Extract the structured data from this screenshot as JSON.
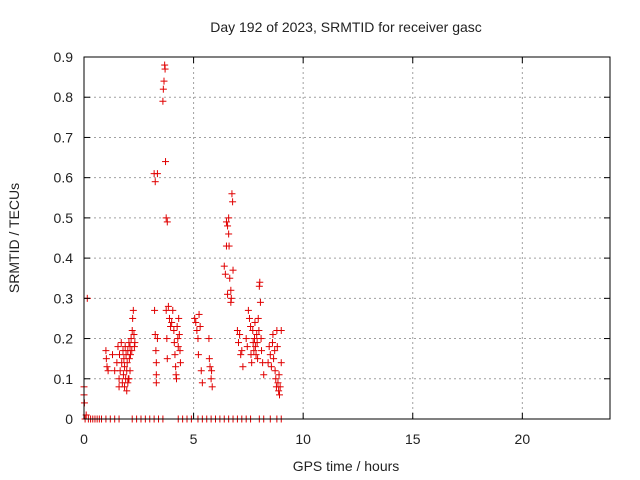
{
  "chart_data": {
    "type": "scatter",
    "title": "Day 192 of 2023, SRMTID for receiver gasc",
    "xlabel": "GPS time / hours",
    "ylabel": "SRMTID / TECUs",
    "xlim": [
      0,
      24
    ],
    "ylim": [
      0,
      0.9
    ],
    "xticks": [
      0,
      5,
      10,
      15,
      20
    ],
    "yticks": [
      0,
      0.1,
      0.2,
      0.3,
      0.4,
      0.5,
      0.6,
      0.7,
      0.8,
      0.9
    ],
    "ytick_labels": [
      "0",
      "0.1",
      "0.2",
      "0.3",
      "0.4",
      "0.5",
      "0.6",
      "0.7",
      "0.8",
      "0.9"
    ],
    "grid": true,
    "marker": "+",
    "series": [
      {
        "name": "SRMTID",
        "color": "#e00000",
        "points": [
          [
            0.0,
            0.08
          ],
          [
            0.0,
            0.06
          ],
          [
            0.02,
            0.04
          ],
          [
            0.05,
            0.0
          ],
          [
            0.1,
            0.01
          ],
          [
            0.15,
            0.3
          ],
          [
            0.2,
            0.0
          ],
          [
            0.3,
            0.0
          ],
          [
            0.4,
            0.0
          ],
          [
            0.5,
            0.0
          ],
          [
            0.6,
            0.0
          ],
          [
            0.7,
            0.0
          ],
          [
            0.8,
            0.0
          ],
          [
            1.0,
            0.17
          ],
          [
            1.02,
            0.15
          ],
          [
            1.05,
            0.13
          ],
          [
            1.1,
            0.12
          ],
          [
            1.0,
            0.0
          ],
          [
            1.2,
            0.0
          ],
          [
            1.4,
            0.0
          ],
          [
            1.6,
            0.0
          ],
          [
            1.3,
            0.16
          ],
          [
            1.4,
            0.12
          ],
          [
            1.5,
            0.14
          ],
          [
            1.55,
            0.18
          ],
          [
            1.6,
            0.1
          ],
          [
            1.6,
            0.08
          ],
          [
            1.62,
            0.16
          ],
          [
            1.65,
            0.12
          ],
          [
            1.7,
            0.19
          ],
          [
            1.72,
            0.14
          ],
          [
            1.75,
            0.09
          ],
          [
            1.78,
            0.17
          ],
          [
            1.8,
            0.11
          ],
          [
            1.82,
            0.15
          ],
          [
            1.85,
            0.13
          ],
          [
            1.88,
            0.18
          ],
          [
            1.9,
            0.1
          ],
          [
            1.92,
            0.16
          ],
          [
            1.95,
            0.12
          ],
          [
            1.97,
            0.14
          ],
          [
            2.0,
            0.17
          ],
          [
            2.02,
            0.1
          ],
          [
            2.05,
            0.19
          ],
          [
            2.07,
            0.15
          ],
          [
            2.1,
            0.18
          ],
          [
            2.12,
            0.16
          ],
          [
            2.15,
            0.2
          ],
          [
            2.18,
            0.17
          ],
          [
            2.2,
            0.22
          ],
          [
            2.22,
            0.25
          ],
          [
            2.25,
            0.27
          ],
          [
            2.28,
            0.21
          ],
          [
            2.3,
            0.18
          ],
          [
            2.32,
            0.19
          ],
          [
            1.85,
            0.08
          ],
          [
            1.95,
            0.07
          ],
          [
            2.0,
            0.09
          ],
          [
            2.05,
            0.1
          ],
          [
            2.1,
            0.12
          ],
          [
            2.2,
            0.0
          ],
          [
            2.4,
            0.0
          ],
          [
            2.6,
            0.0
          ],
          [
            2.8,
            0.0
          ],
          [
            3.0,
            0.0
          ],
          [
            3.2,
            0.0
          ],
          [
            3.4,
            0.0
          ],
          [
            3.6,
            0.0
          ],
          [
            3.2,
            0.61
          ],
          [
            3.25,
            0.59
          ],
          [
            3.22,
            0.27
          ],
          [
            3.25,
            0.21
          ],
          [
            3.28,
            0.17
          ],
          [
            3.3,
            0.14
          ],
          [
            3.3,
            0.11
          ],
          [
            3.3,
            0.09
          ],
          [
            3.35,
            0.61
          ],
          [
            3.35,
            0.2
          ],
          [
            3.6,
            0.79
          ],
          [
            3.62,
            0.82
          ],
          [
            3.65,
            0.84
          ],
          [
            3.68,
            0.88
          ],
          [
            3.7,
            0.87
          ],
          [
            3.72,
            0.64
          ],
          [
            3.75,
            0.5
          ],
          [
            3.8,
            0.49
          ],
          [
            3.75,
            0.27
          ],
          [
            3.78,
            0.2
          ],
          [
            3.8,
            0.15
          ],
          [
            3.85,
            0.28
          ],
          [
            3.9,
            0.25
          ],
          [
            3.95,
            0.23
          ],
          [
            4.0,
            0.24
          ],
          [
            4.05,
            0.27
          ],
          [
            4.1,
            0.22
          ],
          [
            4.12,
            0.19
          ],
          [
            4.15,
            0.16
          ],
          [
            4.18,
            0.13
          ],
          [
            4.2,
            0.11
          ],
          [
            4.22,
            0.1
          ],
          [
            4.25,
            0.23
          ],
          [
            4.28,
            0.2
          ],
          [
            4.3,
            0.18
          ],
          [
            4.32,
            0.25
          ],
          [
            4.35,
            0.21
          ],
          [
            4.38,
            0.17
          ],
          [
            4.4,
            0.14
          ],
          [
            4.3,
            0.0
          ],
          [
            4.5,
            0.0
          ],
          [
            4.7,
            0.0
          ],
          [
            4.9,
            0.0
          ],
          [
            5.05,
            0.25
          ],
          [
            5.1,
            0.24
          ],
          [
            5.15,
            0.22
          ],
          [
            5.2,
            0.2
          ],
          [
            5.22,
            0.16
          ],
          [
            5.25,
            0.26
          ],
          [
            5.3,
            0.23
          ],
          [
            5.35,
            0.12
          ],
          [
            5.4,
            0.09
          ],
          [
            5.2,
            0.0
          ],
          [
            5.4,
            0.0
          ],
          [
            5.6,
            0.0
          ],
          [
            5.8,
            0.0
          ],
          [
            6.0,
            0.0
          ],
          [
            5.7,
            0.2
          ],
          [
            5.72,
            0.15
          ],
          [
            5.75,
            0.13
          ],
          [
            5.8,
            0.1
          ],
          [
            5.82,
            0.12
          ],
          [
            5.85,
            0.08
          ],
          [
            6.2,
            0.0
          ],
          [
            6.4,
            0.0
          ],
          [
            6.6,
            0.0
          ],
          [
            6.8,
            0.0
          ],
          [
            7.0,
            0.0
          ],
          [
            7.2,
            0.0
          ],
          [
            7.4,
            0.0
          ],
          [
            7.6,
            0.0
          ],
          [
            6.4,
            0.38
          ],
          [
            6.45,
            0.36
          ],
          [
            6.5,
            0.49
          ],
          [
            6.5,
            0.43
          ],
          [
            6.55,
            0.48
          ],
          [
            6.6,
            0.5
          ],
          [
            6.6,
            0.46
          ],
          [
            6.62,
            0.43
          ],
          [
            6.65,
            0.35
          ],
          [
            6.7,
            0.32
          ],
          [
            6.72,
            0.3
          ],
          [
            6.75,
            0.56
          ],
          [
            6.78,
            0.54
          ],
          [
            6.8,
            0.37
          ],
          [
            6.55,
            0.31
          ],
          [
            6.7,
            0.29
          ],
          [
            7.0,
            0.22
          ],
          [
            7.05,
            0.19
          ],
          [
            7.1,
            0.21
          ],
          [
            7.15,
            0.16
          ],
          [
            7.2,
            0.17
          ],
          [
            7.25,
            0.13
          ],
          [
            7.4,
            0.2
          ],
          [
            7.45,
            0.18
          ],
          [
            7.5,
            0.27
          ],
          [
            7.55,
            0.25
          ],
          [
            7.6,
            0.23
          ],
          [
            7.62,
            0.16
          ],
          [
            7.65,
            0.14
          ],
          [
            7.7,
            0.22
          ],
          [
            7.72,
            0.19
          ],
          [
            7.75,
            0.17
          ],
          [
            7.78,
            0.2
          ],
          [
            7.8,
            0.24
          ],
          [
            7.82,
            0.18
          ],
          [
            7.85,
            0.16
          ],
          [
            7.88,
            0.21
          ],
          [
            7.9,
            0.19
          ],
          [
            7.92,
            0.15
          ],
          [
            7.95,
            0.25
          ],
          [
            7.98,
            0.22
          ],
          [
            8.0,
            0.33
          ],
          [
            8.02,
            0.34
          ],
          [
            8.05,
            0.29
          ],
          [
            8.08,
            0.2
          ],
          [
            8.1,
            0.17
          ],
          [
            8.15,
            0.14
          ],
          [
            8.2,
            0.11
          ],
          [
            8.0,
            0.0
          ],
          [
            8.2,
            0.0
          ],
          [
            8.4,
            0.14
          ],
          [
            8.45,
            0.18
          ],
          [
            8.5,
            0.16
          ],
          [
            8.55,
            0.13
          ],
          [
            8.6,
            0.19
          ],
          [
            8.62,
            0.21
          ],
          [
            8.65,
            0.15
          ],
          [
            8.7,
            0.17
          ],
          [
            8.72,
            0.12
          ],
          [
            8.75,
            0.1
          ],
          [
            8.78,
            0.08
          ],
          [
            8.8,
            0.22
          ],
          [
            8.82,
            0.18
          ],
          [
            8.85,
            0.09
          ],
          [
            8.88,
            0.07
          ],
          [
            8.9,
            0.11
          ],
          [
            8.92,
            0.06
          ],
          [
            8.95,
            0.08
          ],
          [
            9.0,
            0.22
          ],
          [
            9.0,
            0.14
          ],
          [
            8.5,
            0.0
          ],
          [
            8.8,
            0.0
          ],
          [
            9.0,
            0.0
          ]
        ]
      }
    ]
  }
}
